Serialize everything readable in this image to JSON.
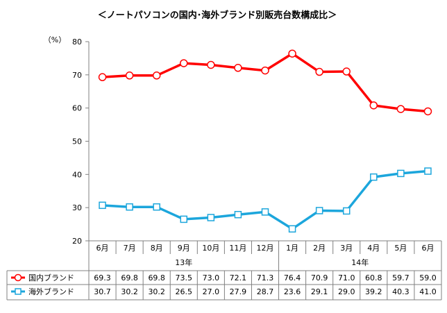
{
  "chart_data": {
    "type": "line",
    "title": "＜ノートパソコンの国内･海外ブランド別販売台数構成比＞",
    "ylabel": "（%）",
    "ylim": [
      20,
      80
    ],
    "yticks": [
      20,
      30,
      40,
      50,
      60,
      70,
      80
    ],
    "categories": [
      "6月",
      "7月",
      "8月",
      "9月",
      "10月",
      "11月",
      "12月",
      "1月",
      "2月",
      "3月",
      "4月",
      "5月",
      "6月"
    ],
    "year_groups": [
      {
        "label": "13年",
        "from": 0,
        "to": 6
      },
      {
        "label": "14年",
        "from": 7,
        "to": 12
      }
    ],
    "grid": false,
    "legend": "table-bottom",
    "series": [
      {
        "name": "国内ブランド",
        "color": "#ff0000",
        "marker": "circle",
        "values": [
          69.3,
          69.8,
          69.8,
          73.5,
          73.0,
          72.1,
          71.3,
          76.4,
          70.9,
          71.0,
          60.8,
          59.7,
          59.0
        ],
        "labels": [
          "69.3",
          "69.8",
          "69.8",
          "73.5",
          "73.0",
          "72.1",
          "71.3",
          "76.4",
          "70.9",
          "71.0",
          "60.8",
          "59.7",
          "59.0"
        ]
      },
      {
        "name": "海外ブランド",
        "color": "#1ca6dc",
        "marker": "square",
        "values": [
          30.7,
          30.2,
          30.2,
          26.5,
          27.0,
          27.9,
          28.7,
          23.6,
          29.1,
          29.0,
          39.2,
          40.3,
          41.0
        ],
        "labels": [
          "30.7",
          "30.2",
          "30.2",
          "26.5",
          "27.0",
          "27.9",
          "28.7",
          "23.6",
          "29.1",
          "29.0",
          "39.2",
          "40.3",
          "41.0"
        ]
      }
    ]
  }
}
